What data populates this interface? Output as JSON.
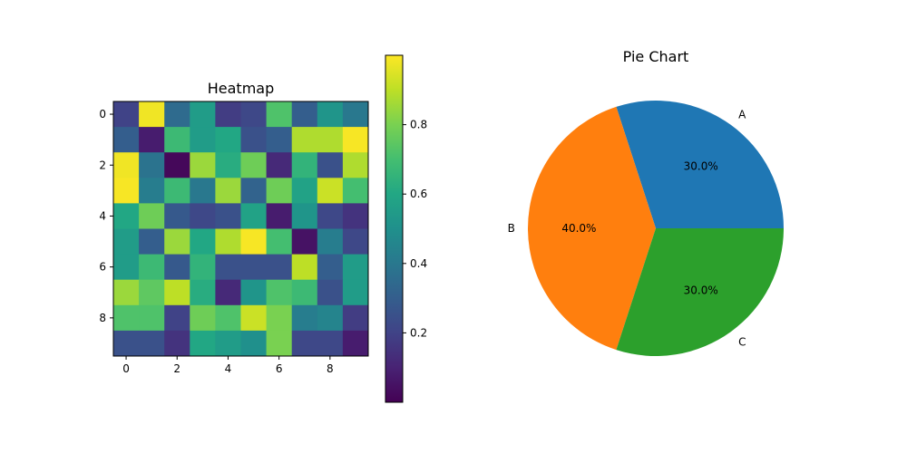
{
  "chart_data": [
    {
      "type": "heatmap",
      "title": "Heatmap",
      "xlabel": "",
      "ylabel": "",
      "x_ticks": [
        "0",
        "2",
        "4",
        "6",
        "8"
      ],
      "y_ticks": [
        "0",
        "2",
        "4",
        "6",
        "8"
      ],
      "colormap": "viridis",
      "values": [
        [
          0.2,
          0.98,
          0.35,
          0.55,
          0.18,
          0.22,
          0.72,
          0.3,
          0.52,
          0.4
        ],
        [
          0.3,
          0.08,
          0.68,
          0.55,
          0.6,
          0.25,
          0.3,
          0.88,
          0.88,
          0.99
        ],
        [
          0.98,
          0.38,
          0.02,
          0.85,
          0.62,
          0.78,
          0.12,
          0.65,
          0.25,
          0.88
        ],
        [
          0.99,
          0.42,
          0.68,
          0.4,
          0.85,
          0.32,
          0.78,
          0.58,
          0.92,
          0.7
        ],
        [
          0.6,
          0.78,
          0.28,
          0.22,
          0.25,
          0.58,
          0.08,
          0.52,
          0.22,
          0.15
        ],
        [
          0.55,
          0.3,
          0.85,
          0.6,
          0.88,
          0.99,
          0.7,
          0.05,
          0.42,
          0.22
        ],
        [
          0.55,
          0.68,
          0.28,
          0.65,
          0.25,
          0.25,
          0.25,
          0.9,
          0.3,
          0.55
        ],
        [
          0.85,
          0.75,
          0.9,
          0.62,
          0.12,
          0.52,
          0.72,
          0.68,
          0.25,
          0.55
        ],
        [
          0.72,
          0.72,
          0.2,
          0.78,
          0.72,
          0.92,
          0.8,
          0.42,
          0.45,
          0.18
        ],
        [
          0.25,
          0.25,
          0.15,
          0.6,
          0.55,
          0.5,
          0.8,
          0.22,
          0.22,
          0.08
        ]
      ],
      "colorbar": {
        "range": [
          0.0,
          1.0
        ],
        "ticks": [
          0.2,
          0.4,
          0.6,
          0.8
        ],
        "tick_labels": [
          "0.2",
          "0.4",
          "0.6",
          "0.8"
        ]
      }
    },
    {
      "type": "pie",
      "title": "Pie Chart",
      "labels": [
        "A",
        "B",
        "C"
      ],
      "values": [
        30,
        40,
        30
      ],
      "autopct_labels": [
        "30.0%",
        "40.0%",
        "30.0%"
      ],
      "colors": [
        "#1f77b4",
        "#ff7f0e",
        "#2ca02c"
      ],
      "start_angle": 0
    }
  ]
}
